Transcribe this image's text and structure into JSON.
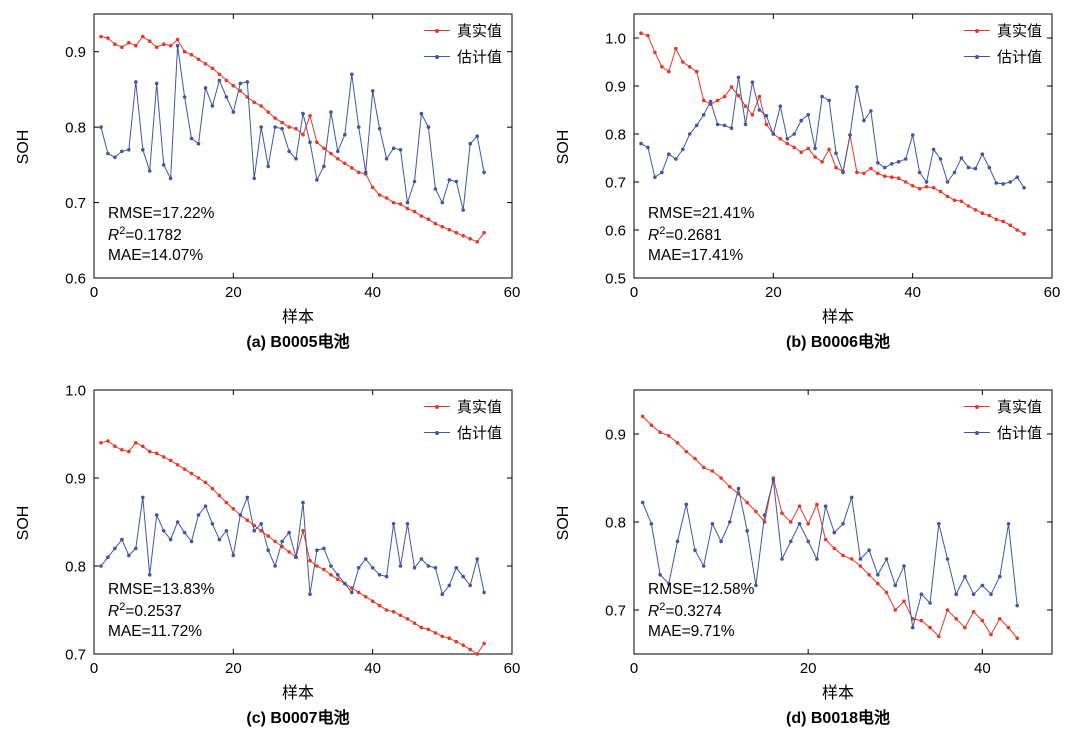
{
  "page": {
    "background": "#ffffff"
  },
  "colors": {
    "true_series": "#e13a29",
    "estimated_series": "#4156a1",
    "axis": "#000000"
  },
  "chart_data": [
    {
      "id": "a",
      "type": "line",
      "caption": "(a) B0005电池",
      "xlabel": "样本",
      "ylabel": "SOH",
      "xlim": [
        0,
        60
      ],
      "xticks": [
        0,
        20,
        40,
        60
      ],
      "ylim": [
        0.6,
        0.95
      ],
      "yticks": [
        0.6,
        0.7,
        0.8,
        0.9
      ],
      "grid": false,
      "legend_position": "top-right",
      "stats": {
        "rmse": "RMSE=17.22%",
        "r2_label": "R",
        "r2_sup": "2",
        "r2_rest": "=0.1782",
        "mae": "MAE=14.07%"
      },
      "series": [
        {
          "name": "真实值",
          "color": "#e13a29",
          "values": [
            0.92,
            0.918,
            0.91,
            0.906,
            0.912,
            0.908,
            0.92,
            0.914,
            0.906,
            0.91,
            0.908,
            0.916,
            0.9,
            0.896,
            0.89,
            0.884,
            0.878,
            0.87,
            0.862,
            0.855,
            0.848,
            0.84,
            0.833,
            0.828,
            0.82,
            0.812,
            0.806,
            0.8,
            0.798,
            0.79,
            0.815,
            0.78,
            0.772,
            0.765,
            0.758,
            0.752,
            0.746,
            0.74,
            0.738,
            0.72,
            0.71,
            0.706,
            0.7,
            0.698,
            0.692,
            0.688,
            0.682,
            0.678,
            0.672,
            0.668,
            0.664,
            0.66,
            0.656,
            0.652,
            0.648,
            0.66
          ]
        },
        {
          "name": "估计值",
          "color": "#4156a1",
          "values": [
            0.8,
            0.765,
            0.76,
            0.768,
            0.77,
            0.86,
            0.77,
            0.742,
            0.858,
            0.75,
            0.732,
            0.908,
            0.84,
            0.785,
            0.778,
            0.852,
            0.828,
            0.862,
            0.84,
            0.82,
            0.858,
            0.86,
            0.732,
            0.8,
            0.748,
            0.8,
            0.798,
            0.768,
            0.758,
            0.818,
            0.78,
            0.73,
            0.748,
            0.82,
            0.768,
            0.79,
            0.87,
            0.8,
            0.74,
            0.848,
            0.798,
            0.758,
            0.772,
            0.77,
            0.7,
            0.728,
            0.818,
            0.8,
            0.718,
            0.7,
            0.73,
            0.728,
            0.69,
            0.778,
            0.788,
            0.74
          ]
        }
      ]
    },
    {
      "id": "b",
      "type": "line",
      "caption": "(b) B0006电池",
      "xlabel": "样本",
      "ylabel": "SOH",
      "xlim": [
        0,
        60
      ],
      "xticks": [
        0,
        20,
        40,
        60
      ],
      "ylim": [
        0.5,
        1.05
      ],
      "yticks": [
        0.5,
        0.6,
        0.7,
        0.8,
        0.9,
        1.0
      ],
      "grid": false,
      "legend_position": "top-right",
      "stats": {
        "rmse": "RMSE=21.41%",
        "r2_label": "R",
        "r2_sup": "2",
        "r2_rest": "=0.2681",
        "mae": "MAE=17.41%"
      },
      "series": [
        {
          "name": "真实值",
          "color": "#e13a29",
          "values": [
            1.01,
            1.005,
            0.97,
            0.94,
            0.93,
            0.978,
            0.95,
            0.94,
            0.93,
            0.87,
            0.862,
            0.87,
            0.878,
            0.898,
            0.88,
            0.858,
            0.84,
            0.878,
            0.82,
            0.8,
            0.79,
            0.78,
            0.772,
            0.762,
            0.77,
            0.752,
            0.742,
            0.768,
            0.73,
            0.722,
            0.798,
            0.72,
            0.718,
            0.728,
            0.718,
            0.712,
            0.71,
            0.708,
            0.7,
            0.692,
            0.686,
            0.69,
            0.688,
            0.68,
            0.67,
            0.662,
            0.66,
            0.65,
            0.642,
            0.635,
            0.63,
            0.622,
            0.618,
            0.61,
            0.6,
            0.592
          ]
        },
        {
          "name": "估计值",
          "color": "#4156a1",
          "values": [
            0.78,
            0.772,
            0.71,
            0.72,
            0.758,
            0.748,
            0.768,
            0.8,
            0.818,
            0.84,
            0.868,
            0.82,
            0.818,
            0.812,
            0.918,
            0.82,
            0.908,
            0.85,
            0.838,
            0.8,
            0.858,
            0.79,
            0.8,
            0.828,
            0.84,
            0.77,
            0.878,
            0.87,
            0.76,
            0.72,
            0.798,
            0.898,
            0.828,
            0.848,
            0.74,
            0.73,
            0.738,
            0.742,
            0.748,
            0.798,
            0.72,
            0.7,
            0.768,
            0.748,
            0.7,
            0.72,
            0.75,
            0.73,
            0.728,
            0.758,
            0.73,
            0.698,
            0.696,
            0.7,
            0.71,
            0.688
          ]
        }
      ]
    },
    {
      "id": "c",
      "type": "line",
      "caption": "(c) B0007电池",
      "xlabel": "样本",
      "ylabel": "SOH",
      "xlim": [
        0,
        60
      ],
      "xticks": [
        0,
        20,
        40,
        60
      ],
      "ylim": [
        0.7,
        1.0
      ],
      "yticks": [
        0.7,
        0.8,
        0.9,
        1.0
      ],
      "grid": false,
      "legend_position": "top-right",
      "stats": {
        "rmse": "RMSE=13.83%",
        "r2_label": "R",
        "r2_sup": "2",
        "r2_rest": "=0.2537",
        "mae": "MAE=11.72%"
      },
      "series": [
        {
          "name": "真实值",
          "color": "#e13a29",
          "values": [
            0.94,
            0.942,
            0.936,
            0.932,
            0.93,
            0.94,
            0.936,
            0.93,
            0.928,
            0.924,
            0.92,
            0.915,
            0.91,
            0.905,
            0.9,
            0.895,
            0.888,
            0.88,
            0.872,
            0.865,
            0.858,
            0.852,
            0.846,
            0.84,
            0.834,
            0.828,
            0.822,
            0.816,
            0.81,
            0.84,
            0.806,
            0.8,
            0.796,
            0.79,
            0.785,
            0.78,
            0.775,
            0.77,
            0.765,
            0.76,
            0.755,
            0.75,
            0.748,
            0.744,
            0.74,
            0.735,
            0.73,
            0.728,
            0.724,
            0.72,
            0.718,
            0.714,
            0.71,
            0.705,
            0.7,
            0.712
          ]
        },
        {
          "name": "估计值",
          "color": "#4156a1",
          "values": [
            0.8,
            0.81,
            0.82,
            0.83,
            0.812,
            0.82,
            0.878,
            0.79,
            0.858,
            0.84,
            0.83,
            0.85,
            0.838,
            0.828,
            0.858,
            0.868,
            0.848,
            0.83,
            0.84,
            0.812,
            0.858,
            0.878,
            0.84,
            0.848,
            0.818,
            0.8,
            0.828,
            0.838,
            0.81,
            0.872,
            0.768,
            0.818,
            0.82,
            0.8,
            0.79,
            0.78,
            0.77,
            0.798,
            0.808,
            0.798,
            0.79,
            0.788,
            0.848,
            0.8,
            0.848,
            0.798,
            0.808,
            0.8,
            0.798,
            0.768,
            0.778,
            0.798,
            0.788,
            0.778,
            0.808,
            0.77
          ]
        }
      ]
    },
    {
      "id": "d",
      "type": "line",
      "caption": "(d) B0018电池",
      "xlabel": "样本",
      "ylabel": "SOH",
      "xlim": [
        0,
        48
      ],
      "xticks": [
        0,
        20,
        40
      ],
      "ylim": [
        0.65,
        0.95
      ],
      "yticks": [
        0.7,
        0.8,
        0.9
      ],
      "grid": false,
      "legend_position": "top-right",
      "stats": {
        "rmse": "RMSE=12.58%",
        "r2_label": "R",
        "r2_sup": "2",
        "r2_rest": "=0.3274",
        "mae": "MAE=9.71%"
      },
      "series": [
        {
          "name": "真实值",
          "color": "#e13a29",
          "values": [
            0.92,
            0.91,
            0.902,
            0.898,
            0.89,
            0.88,
            0.872,
            0.862,
            0.858,
            0.85,
            0.84,
            0.832,
            0.822,
            0.812,
            0.8,
            0.85,
            0.81,
            0.8,
            0.818,
            0.798,
            0.82,
            0.78,
            0.77,
            0.762,
            0.758,
            0.75,
            0.74,
            0.73,
            0.72,
            0.7,
            0.71,
            0.69,
            0.688,
            0.68,
            0.67,
            0.7,
            0.69,
            0.68,
            0.698,
            0.688,
            0.672,
            0.69,
            0.68,
            0.668
          ]
        },
        {
          "name": "估计值",
          "color": "#4156a1",
          "values": [
            0.822,
            0.798,
            0.74,
            0.73,
            0.778,
            0.82,
            0.768,
            0.75,
            0.798,
            0.778,
            0.8,
            0.838,
            0.79,
            0.728,
            0.808,
            0.848,
            0.758,
            0.778,
            0.798,
            0.778,
            0.758,
            0.818,
            0.788,
            0.798,
            0.828,
            0.758,
            0.768,
            0.74,
            0.758,
            0.728,
            0.75,
            0.68,
            0.718,
            0.708,
            0.798,
            0.758,
            0.718,
            0.738,
            0.718,
            0.728,
            0.718,
            0.738,
            0.798,
            0.705
          ]
        }
      ]
    }
  ]
}
